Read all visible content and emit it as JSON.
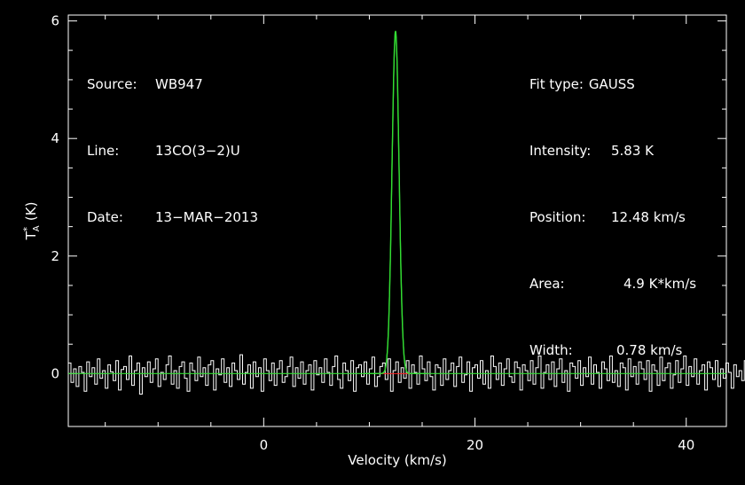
{
  "header_left": {
    "source_label": "Source:",
    "source_value": "WB947",
    "line_label": "Line:",
    "line_value": "13CO(3−2)U",
    "date_label": "Date:",
    "date_value": "13−MAR−2013"
  },
  "fit": {
    "type_label": "Fit type:",
    "type_value": "GAUSS",
    "intensity_label": "Intensity:",
    "intensity_value": "5.83 K",
    "position_label": "Position:",
    "position_value": "12.48 km/s",
    "area_label": "Area:",
    "area_value": "4.9 K*km/s",
    "width_label": "Width:",
    "width_value": "0.78 km/s"
  },
  "chart_data": {
    "type": "line",
    "xlabel": "Velocity (km/s)",
    "ylabel": "T_A* (K)",
    "xlim": [
      -18.5,
      43.8
    ],
    "ylim": [
      -0.9,
      6.1
    ],
    "x_ticks": [
      0,
      20,
      40
    ],
    "y_ticks": [
      0,
      2,
      4,
      6
    ],
    "spectrum_channel_width_kms": 0.25,
    "series": [
      {
        "role": "observed spectrum",
        "style": "histogram",
        "color": "#ffffff",
        "x_start": -18.5,
        "x_step": 0.25,
        "values": [
          0.18,
          -0.15,
          0.08,
          -0.22,
          0.12,
          0.02,
          -0.3,
          0.2,
          -0.05,
          0.1,
          -0.18,
          0.25,
          -0.08,
          0.05,
          -0.25,
          0.15,
          0.03,
          -0.12,
          0.22,
          -0.28,
          0.07,
          0.12,
          -0.1,
          0.3,
          -0.2,
          0.05,
          0.18,
          -0.35,
          0.1,
          -0.05,
          0.2,
          -0.15,
          0.08,
          0.25,
          -0.22,
          0.02,
          -0.1,
          0.15,
          0.3,
          -0.18,
          0.05,
          -0.25,
          0.12,
          0.2,
          -0.08,
          -0.3,
          0.18,
          0.05,
          -0.12,
          0.28,
          -0.05,
          0.1,
          -0.2,
          0.15,
          0.22,
          -0.28,
          0.08,
          -0.02,
          0.25,
          -0.15,
          0.1,
          -0.22,
          0.18,
          0.05,
          -0.1,
          0.32,
          -0.18,
          0.02,
          0.15,
          -0.25,
          0.2,
          -0.05,
          0.1,
          -0.3,
          0.25,
          0.05,
          -0.12,
          0.18,
          -0.2,
          0.08,
          0.22,
          -0.15,
          -0.05,
          0.12,
          0.28,
          -0.22,
          0.1,
          -0.08,
          0.2,
          -0.18,
          0.05,
          0.15,
          -0.28,
          0.22,
          -0.02,
          0.1,
          -0.15,
          0.25,
          0.02,
          -0.2,
          0.12,
          0.3,
          -0.1,
          -0.25,
          0.18,
          0.05,
          -0.12,
          0.22,
          -0.3,
          0.1,
          0.15,
          -0.05,
          0.2,
          -0.18,
          0.08,
          0.28,
          -0.22,
          -0.05,
          0.12,
          0.18,
          -0.1,
          0.25,
          -0.3,
          0.05,
          0.2,
          -0.15,
          0.1,
          -0.08,
          0.22,
          -0.25,
          0.15,
          0.02,
          -0.18,
          0.3,
          0.08,
          -0.12,
          0.2,
          -0.05,
          -0.28,
          0.15,
          0.1,
          -0.2,
          0.25,
          -0.1,
          0.05,
          0.18,
          -0.22,
          0.12,
          0.28,
          -0.15,
          -0.02,
          0.2,
          -0.3,
          0.1,
          0.15,
          -0.08,
          0.22,
          -0.18,
          0.05,
          -0.25,
          0.3,
          0.12,
          -0.1,
          0.18,
          -0.2,
          0.08,
          0.25,
          -0.05,
          -0.15,
          0.2,
          0.1,
          -0.28,
          0.15,
          0.05,
          -0.12,
          0.22,
          -0.18,
          0.1,
          0.3,
          -0.25,
          0.02,
          0.15,
          -0.1,
          0.2,
          -0.22,
          0.08,
          0.25,
          -0.15,
          0.05,
          -0.3,
          0.18,
          0.12,
          -0.08,
          0.22,
          -0.2,
          0.1,
          -0.05,
          0.28,
          -0.18,
          0.15,
          0.02,
          -0.25,
          0.2,
          0.08,
          -0.12,
          0.3,
          -0.15,
          0.05,
          -0.22,
          0.18,
          0.1,
          -0.28,
          0.25,
          -0.05,
          0.12,
          -0.18,
          0.2,
          0.08,
          -0.1,
          0.22,
          -0.3,
          0.15,
          0.05,
          -0.2,
          0.28,
          -0.12,
          0.1,
          0.18,
          -0.25,
          -0.02,
          0.22,
          -0.15,
          0.08,
          0.3,
          -0.2,
          0.12,
          -0.05,
          0.25,
          -0.18,
          0.05,
          0.15,
          -0.28,
          0.2,
          0.1,
          -0.1,
          0.22,
          -0.22,
          0.08,
          -0.08,
          0.18,
          0.02,
          -0.25,
          0.15,
          -0.05,
          0.05,
          -0.12,
          0.22,
          -0.05,
          0.08,
          0.25,
          0.6,
          1.35,
          2.5,
          3.75,
          4.8,
          5.6,
          5.8,
          5.45,
          4.65,
          3.55,
          2.35,
          1.3,
          0.6,
          0.2,
          -0.08,
          0.15,
          -0.22,
          0.1,
          -0.05,
          0.18,
          -0.3,
          0.12,
          0.05,
          -0.15,
          0.22,
          -0.1,
          0.08,
          0.28,
          -0.35,
          -0.05,
          0.15,
          -0.2,
          0.1,
          0.2,
          -0.12,
          0.25,
          -0.18,
          0.05,
          0.12,
          -0.28,
          0.2,
          -0.08,
          0.15,
          0.02,
          -0.22,
          0.18,
          -0.1,
          0.28,
          -0.15,
          0.05,
          0.1,
          -0.3,
          0.22,
          -0.05,
          0.15,
          -0.18,
          0.08,
          0.25,
          -0.12,
          0.02,
          0.18,
          -0.25,
          0.1,
          -0.45,
          0.2,
          0.05,
          -0.1,
          0.22,
          -0.18,
          0.12,
          0.3,
          -0.2,
          0.05,
          -0.08,
          0.25,
          -0.15,
          0.1,
          0.18,
          -0.28,
          0.05,
          0.15,
          -0.12,
          0.22,
          -0.05,
          -0.2,
          0.28,
          0.08,
          -0.18,
          0.12,
          0.2,
          -0.25,
          0.02,
          0.15,
          -0.1,
          0.25,
          -0.3,
          0.1,
          0.05,
          -0.15,
          0.2,
          -0.08,
          0.18,
          -0.22,
          0.12,
          0.3,
          -0.15,
          0.02,
          -0.1,
          0.22,
          -0.25,
          0.15,
          0.08,
          -0.18,
          0.2,
          -0.05,
          0.1,
          -0.28,
          0.25,
          0.05,
          -0.12,
          0.18,
          -0.2,
          0.08,
          0.28,
          -0.1,
          0.12,
          -0.22,
          0.2,
          0.02,
          -0.15,
          0.22,
          -0.3,
          0.15,
          0.05,
          -0.08,
          0.25,
          -0.18,
          0.1,
          0.18,
          -0.25,
          0.05,
          -0.05,
          0.22,
          -0.12,
          0.3,
          -0.2,
          0.08,
          0.15,
          -0.28,
          0.12,
          0.02,
          0.2,
          -0.15,
          0.1,
          -0.22,
          0.25,
          -0.05,
          0.18,
          0.05,
          -0.3,
          0.15,
          0.22,
          -0.12,
          0.08,
          -0.18,
          0.28,
          0.1,
          -0.25,
          0.02,
          0.2,
          -0.15,
          0.12,
          -0.08,
          0.3,
          -0.2,
          0.18,
          0.05,
          -0.22,
          0.15,
          -0.1
        ]
      },
      {
        "role": "gaussian fit",
        "color": "#33dd33",
        "amplitude": 5.83,
        "center": 12.48,
        "fwhm": 0.78
      },
      {
        "role": "fit window baseline",
        "color": "#ff2222",
        "x_range": [
          10.9,
          14.1
        ],
        "value": 0
      }
    ]
  }
}
